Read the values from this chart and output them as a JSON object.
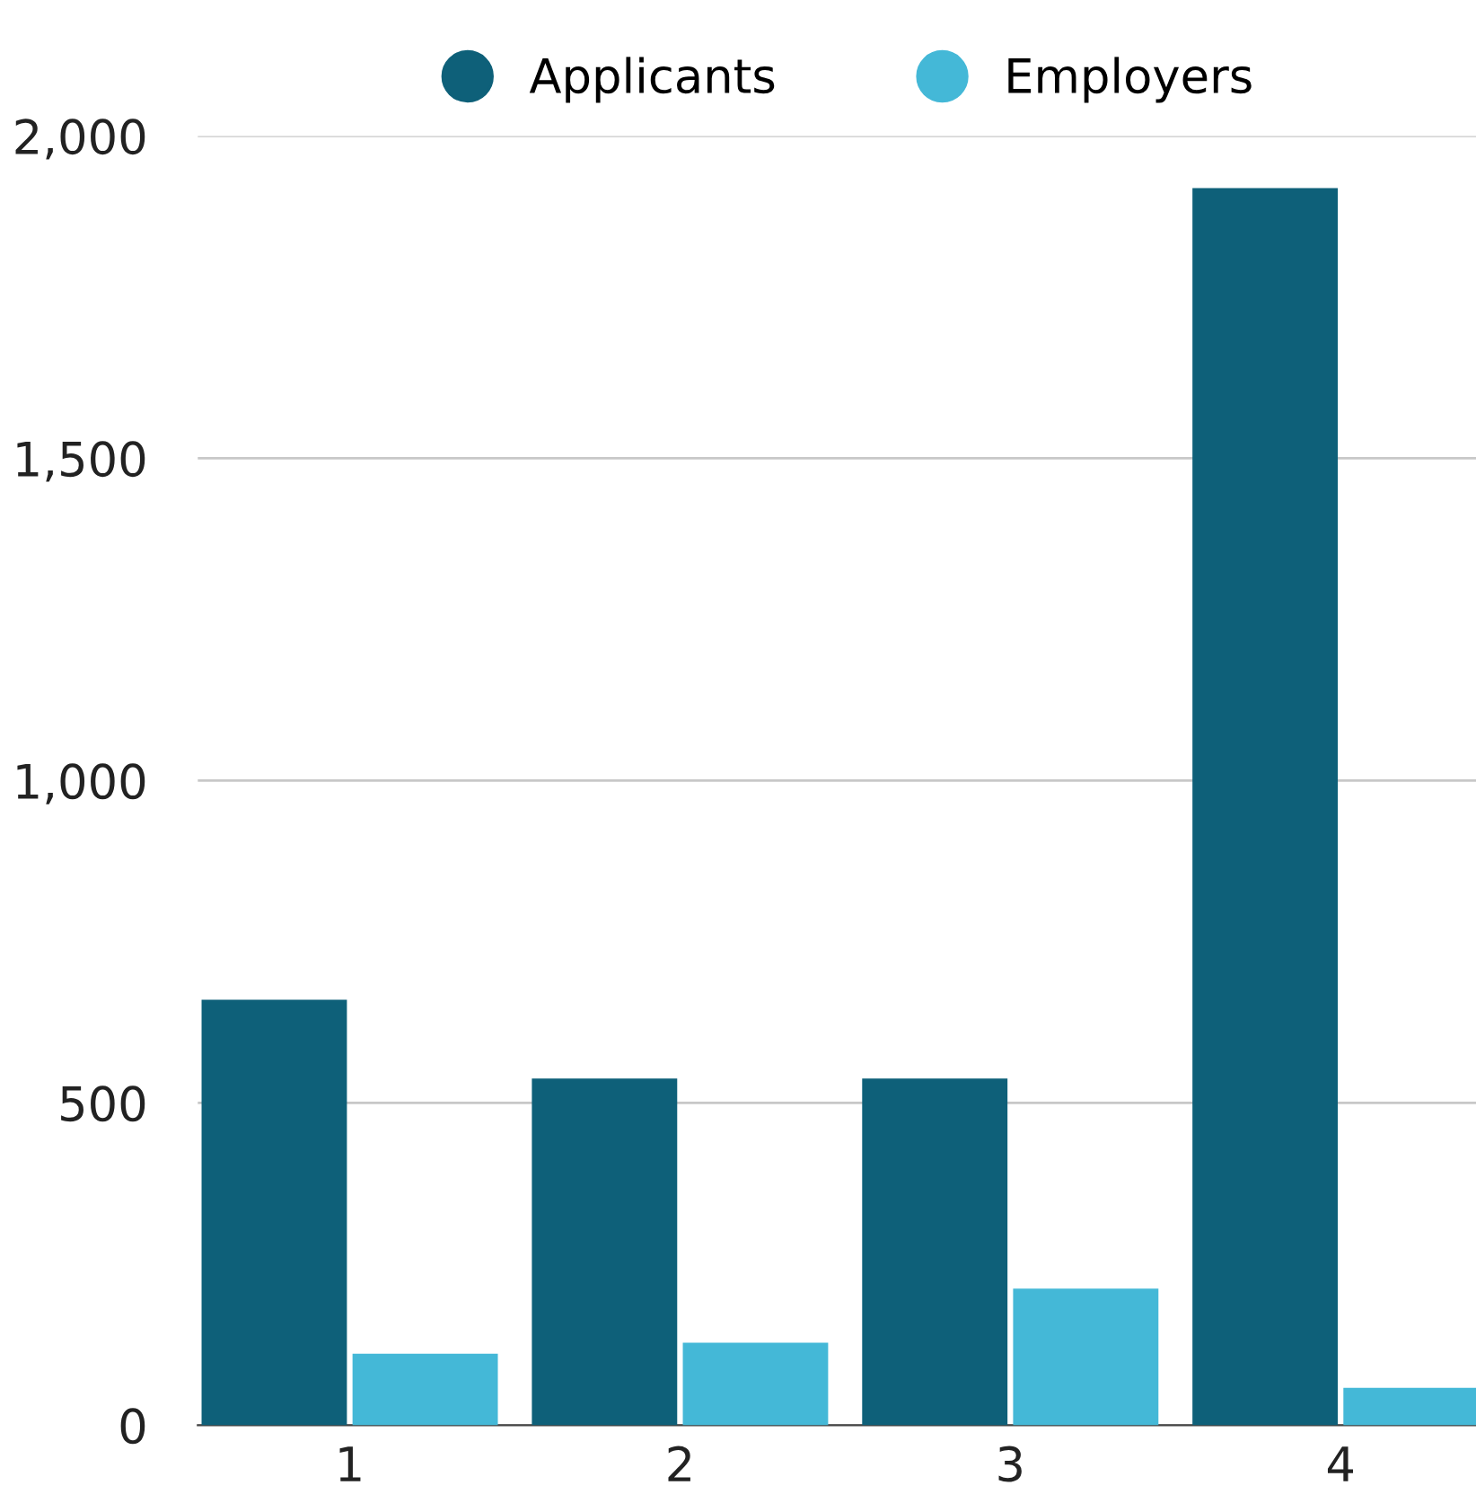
{
  "chart_data": {
    "type": "bar",
    "categories": [
      "1",
      "2",
      "3",
      "4"
    ],
    "series": [
      {
        "name": "Applicants",
        "color": "#0e6079",
        "values": [
          660,
          538,
          538,
          1919
        ]
      },
      {
        "name": "Employers",
        "color": "#44b8d7",
        "values": [
          111,
          128,
          212,
          58
        ]
      }
    ],
    "ylim": [
      0,
      2000
    ],
    "yticks": [
      {
        "value": 0,
        "label": "0"
      },
      {
        "value": 500,
        "label": "500"
      },
      {
        "value": 1000,
        "label": "1,000"
      },
      {
        "value": 1500,
        "label": "1,500"
      },
      {
        "value": 2000,
        "label": "2,000"
      }
    ],
    "grid": "y",
    "legend": "top"
  }
}
